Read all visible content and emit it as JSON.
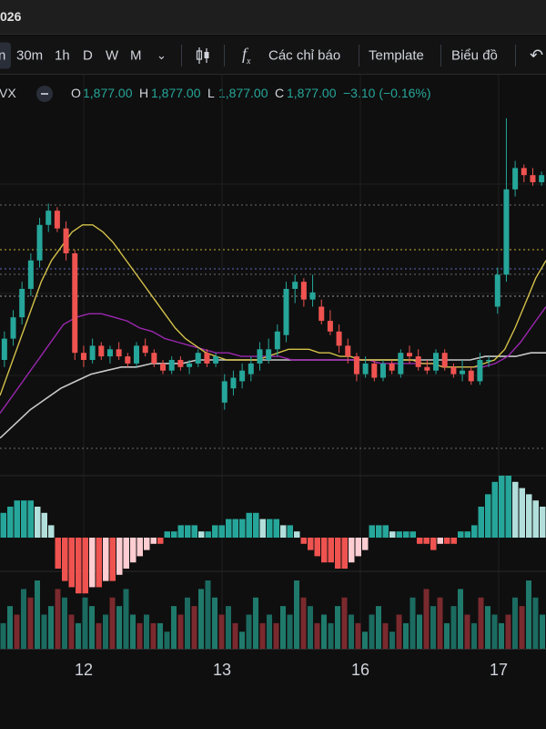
{
  "title_fragment": "026",
  "toolbar": {
    "intervals": [
      {
        "label": "n",
        "active": true
      },
      {
        "label": "30m",
        "active": false
      },
      {
        "label": "1h",
        "active": false
      },
      {
        "label": "D",
        "active": false
      },
      {
        "label": "W",
        "active": false
      },
      {
        "label": "M",
        "active": false
      }
    ],
    "indicators_label": "Các chỉ báo",
    "template_label": "Template",
    "chart_label": "Biểu đồ"
  },
  "legend": {
    "symbol": "VX",
    "o_label": "O",
    "o_value": "1,877.00",
    "h_label": "H",
    "h_value": "1,877.00",
    "l_label": "L",
    "l_value": "1,877.00",
    "c_label": "C",
    "c_value": "1,877.00",
    "change": "−3.10 (−0.16%)"
  },
  "colors": {
    "up": "#26a69a",
    "down": "#ef5350",
    "ma_yellow": "#d4c14a",
    "ma_purple": "#9c27b0",
    "ma_white": "#c9c9c9",
    "grid": "#1f1f1f"
  },
  "x_labels": [
    "12",
    "13",
    "16",
    "17"
  ],
  "chart_data": {
    "type": "candlestick",
    "x_ticks": [
      "12",
      "13",
      "16",
      "17"
    ],
    "candles": [
      {
        "o": 30,
        "h": 38,
        "l": 28,
        "c": 36
      },
      {
        "o": 36,
        "h": 44,
        "l": 34,
        "c": 42
      },
      {
        "o": 42,
        "h": 52,
        "l": 40,
        "c": 50
      },
      {
        "o": 50,
        "h": 60,
        "l": 48,
        "c": 58
      },
      {
        "o": 58,
        "h": 70,
        "l": 56,
        "c": 68
      },
      {
        "o": 68,
        "h": 74,
        "l": 66,
        "c": 72
      },
      {
        "o": 72,
        "h": 73,
        "l": 66,
        "c": 67
      },
      {
        "o": 67,
        "h": 69,
        "l": 58,
        "c": 60
      },
      {
        "o": 60,
        "h": 61,
        "l": 30,
        "c": 32
      },
      {
        "o": 32,
        "h": 34,
        "l": 28,
        "c": 30
      },
      {
        "o": 30,
        "h": 36,
        "l": 29,
        "c": 34
      },
      {
        "o": 34,
        "h": 35,
        "l": 30,
        "c": 31
      },
      {
        "o": 31,
        "h": 34,
        "l": 29,
        "c": 33
      },
      {
        "o": 33,
        "h": 35,
        "l": 30,
        "c": 31
      },
      {
        "o": 31,
        "h": 32,
        "l": 28,
        "c": 29
      },
      {
        "o": 29,
        "h": 35,
        "l": 28,
        "c": 34
      },
      {
        "o": 34,
        "h": 36,
        "l": 31,
        "c": 32
      },
      {
        "o": 32,
        "h": 33,
        "l": 28,
        "c": 29
      },
      {
        "o": 29,
        "h": 30,
        "l": 26,
        "c": 27
      },
      {
        "o": 27,
        "h": 31,
        "l": 26,
        "c": 30
      },
      {
        "o": 30,
        "h": 31,
        "l": 27,
        "c": 28
      },
      {
        "o": 28,
        "h": 30,
        "l": 26,
        "c": 29
      },
      {
        "o": 29,
        "h": 33,
        "l": 28,
        "c": 32
      },
      {
        "o": 32,
        "h": 33,
        "l": 28,
        "c": 29
      },
      {
        "o": 29,
        "h": 32,
        "l": 28,
        "c": 31
      },
      {
        "o": 18,
        "h": 26,
        "l": 16,
        "c": 24
      },
      {
        "o": 22,
        "h": 27,
        "l": 20,
        "c": 25
      },
      {
        "o": 24,
        "h": 29,
        "l": 22,
        "c": 27
      },
      {
        "o": 26,
        "h": 31,
        "l": 24,
        "c": 29
      },
      {
        "o": 29,
        "h": 35,
        "l": 27,
        "c": 33
      },
      {
        "o": 30,
        "h": 36,
        "l": 29,
        "c": 33
      },
      {
        "o": 33,
        "h": 40,
        "l": 31,
        "c": 38
      },
      {
        "o": 37,
        "h": 52,
        "l": 35,
        "c": 50
      },
      {
        "o": 50,
        "h": 54,
        "l": 46,
        "c": 52
      },
      {
        "o": 52,
        "h": 53,
        "l": 45,
        "c": 47
      },
      {
        "o": 47,
        "h": 54,
        "l": 45,
        "c": 49
      },
      {
        "o": 45,
        "h": 47,
        "l": 40,
        "c": 41
      },
      {
        "o": 41,
        "h": 44,
        "l": 37,
        "c": 38
      },
      {
        "o": 38,
        "h": 40,
        "l": 32,
        "c": 34
      },
      {
        "o": 34,
        "h": 36,
        "l": 29,
        "c": 31
      },
      {
        "o": 31,
        "h": 32,
        "l": 24,
        "c": 26
      },
      {
        "o": 26,
        "h": 31,
        "l": 25,
        "c": 29
      },
      {
        "o": 29,
        "h": 30,
        "l": 24,
        "c": 25
      },
      {
        "o": 25,
        "h": 30,
        "l": 24,
        "c": 29
      },
      {
        "o": 29,
        "h": 30,
        "l": 26,
        "c": 27
      },
      {
        "o": 26,
        "h": 33,
        "l": 25,
        "c": 32
      },
      {
        "o": 32,
        "h": 34,
        "l": 29,
        "c": 31
      },
      {
        "o": 31,
        "h": 33,
        "l": 27,
        "c": 28
      },
      {
        "o": 28,
        "h": 30,
        "l": 26,
        "c": 27
      },
      {
        "o": 27,
        "h": 33,
        "l": 26,
        "c": 32
      },
      {
        "o": 32,
        "h": 33,
        "l": 27,
        "c": 28
      },
      {
        "o": 28,
        "h": 29,
        "l": 25,
        "c": 26
      },
      {
        "o": 26,
        "h": 30,
        "l": 24,
        "c": 27
      },
      {
        "o": 27,
        "h": 28,
        "l": 23,
        "c": 24
      },
      {
        "o": 24,
        "h": 32,
        "l": 23,
        "c": 30
      },
      {
        "o": 30,
        "h": 31,
        "l": 28,
        "c": 30
      },
      {
        "o": 45,
        "h": 56,
        "l": 43,
        "c": 54
      },
      {
        "o": 54,
        "h": 98,
        "l": 52,
        "c": 78
      },
      {
        "o": 78,
        "h": 86,
        "l": 76,
        "c": 84
      },
      {
        "o": 84,
        "h": 85,
        "l": 80,
        "c": 82
      },
      {
        "o": 82,
        "h": 84,
        "l": 79,
        "c": 80
      },
      {
        "o": 80,
        "h": 83,
        "l": 79,
        "c": 82
      }
    ],
    "ma_yellow": [
      20,
      28,
      36,
      44,
      52,
      58,
      62,
      66,
      68,
      68,
      66,
      63,
      59,
      55,
      51,
      47,
      43,
      39,
      36,
      34,
      32,
      31,
      30,
      30,
      30,
      30,
      31,
      32,
      33,
      33,
      33,
      32,
      32,
      31,
      31,
      30,
      30,
      30,
      30,
      30,
      30,
      29,
      29,
      28,
      28,
      28,
      28,
      29,
      30,
      33,
      39,
      46,
      53,
      58
    ],
    "ma_purple": [
      15,
      20,
      25,
      30,
      35,
      40,
      42,
      43,
      43,
      42,
      41,
      39,
      38,
      36,
      35,
      34,
      33,
      32,
      32,
      31,
      31,
      31,
      31,
      30,
      30,
      30,
      30,
      30,
      30,
      30,
      29,
      29,
      29,
      29,
      29,
      28,
      28,
      28,
      28,
      29,
      31,
      35,
      40,
      45
    ],
    "ma_white": [
      8,
      12,
      16,
      19,
      22,
      24,
      26,
      27,
      28,
      28,
      29,
      29,
      29,
      30,
      30,
      30,
      30,
      30,
      30,
      30,
      30,
      30,
      30,
      30,
      30,
      30,
      30,
      30,
      30,
      30,
      30,
      30,
      31,
      31,
      31,
      32,
      32
    ],
    "histogram": [
      4,
      5,
      6,
      6,
      6,
      5,
      4,
      2,
      -5,
      -7,
      -8,
      -9,
      -9,
      -8,
      -8,
      -7,
      -7,
      -6,
      -5,
      -4,
      -3,
      -2,
      -1,
      -1,
      1,
      1,
      2,
      2,
      2,
      1,
      1,
      2,
      2,
      3,
      3,
      3,
      4,
      4,
      3,
      3,
      3,
      2,
      2,
      1,
      -1,
      -2,
      -3,
      -4,
      -4,
      -5,
      -5,
      -4,
      -3,
      -2,
      2,
      2,
      2,
      1,
      1,
      1,
      1,
      -1,
      -1,
      -2,
      -1,
      -1,
      -1,
      1,
      1,
      2,
      5,
      7,
      9,
      10,
      10,
      9,
      8,
      7,
      6,
      5
    ],
    "volume": [
      3,
      5,
      4,
      7,
      6,
      8,
      4,
      5,
      7,
      6,
      4,
      3,
      6,
      5,
      3,
      4,
      6,
      5,
      7,
      4,
      3,
      4,
      3,
      3,
      2,
      5,
      4,
      6,
      5,
      7,
      8,
      6,
      4,
      5,
      3,
      2,
      4,
      6,
      3,
      4,
      3,
      5,
      4,
      8,
      6,
      5,
      3,
      4,
      3,
      5,
      6,
      4,
      3,
      2,
      4,
      5,
      3,
      2,
      4,
      3,
      6,
      4,
      7,
      5,
      6,
      3,
      5,
      7,
      4,
      3,
      6,
      5,
      4,
      3,
      4,
      6,
      5,
      8,
      6,
      4
    ]
  }
}
